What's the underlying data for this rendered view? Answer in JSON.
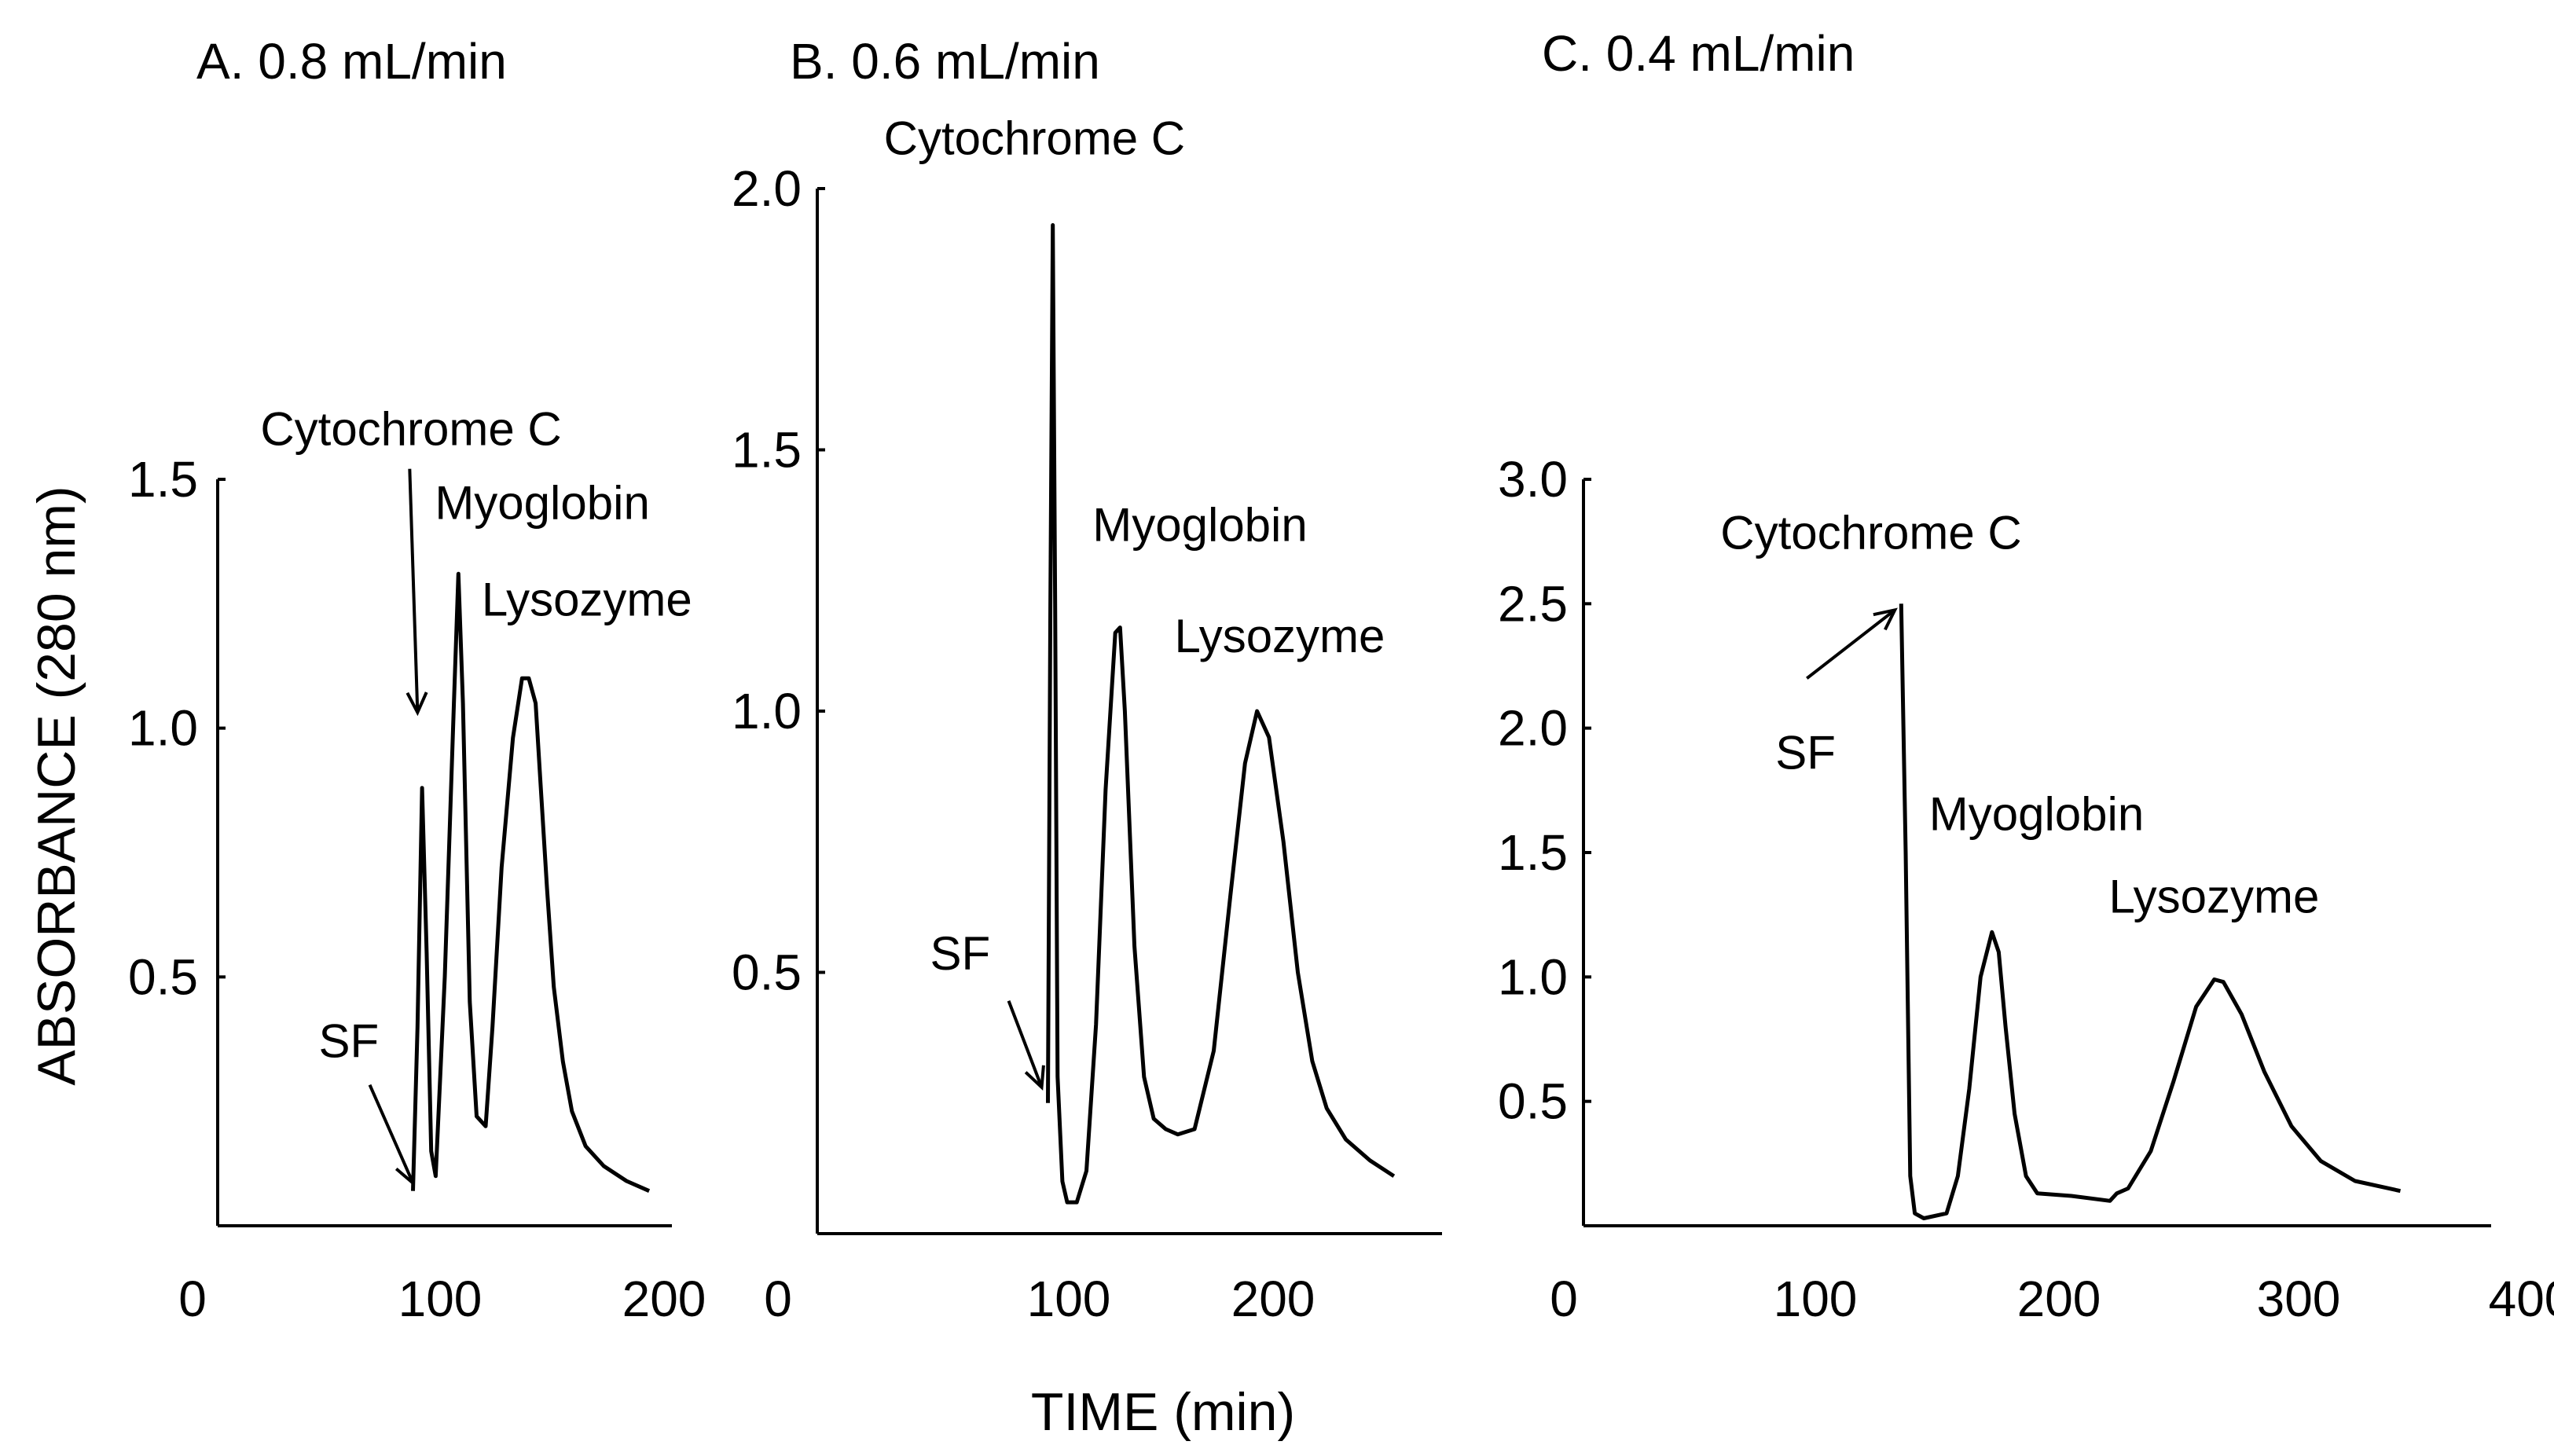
{
  "figure": {
    "ylabel": "ABSORBANCE (280 nm)",
    "xlabel": "TIME (min)"
  },
  "chart_data": [
    {
      "type": "line",
      "title": "A. 0.8 mL/min",
      "xlim": [
        0,
        200
      ],
      "ylim": [
        0,
        1.5
      ],
      "xticks": [
        "0",
        "100",
        "200"
      ],
      "yticks": [
        "0.5",
        "1.0",
        "1.5"
      ],
      "series": [
        {
          "name": "chromatogram",
          "x": [
            86,
            88,
            90,
            92,
            94,
            96,
            100,
            104,
            106,
            108,
            111,
            114,
            118,
            121,
            125,
            130,
            134,
            137,
            140,
            142,
            145,
            148,
            152,
            156,
            162,
            170,
            180,
            190
          ],
          "y": [
            0.07,
            0.4,
            0.88,
            0.55,
            0.15,
            0.1,
            0.5,
            1.05,
            1.31,
            1.05,
            0.45,
            0.22,
            0.2,
            0.4,
            0.72,
            0.98,
            1.1,
            1.1,
            1.05,
            0.9,
            0.68,
            0.48,
            0.33,
            0.23,
            0.16,
            0.12,
            0.09,
            0.07
          ]
        }
      ],
      "annotations": [
        {
          "text": "Cytochrome C",
          "x": 88,
          "y": 1.0,
          "kind": "arrow"
        },
        {
          "text": "Myoglobin",
          "x": 106,
          "y": 1.31,
          "kind": "label"
        },
        {
          "text": "Lysozyme",
          "x": 137,
          "y": 1.1,
          "kind": "label"
        },
        {
          "text": "SF",
          "x": 86,
          "y": 0.07,
          "kind": "arrow"
        }
      ]
    },
    {
      "type": "line",
      "title": "B. 0.6 mL/min",
      "xlim": [
        0,
        260
      ],
      "ylim": [
        0,
        2.0
      ],
      "xticks": [
        "0",
        "100",
        "200"
      ],
      "yticks": [
        "0.5",
        "1.0",
        "1.5",
        "2.0"
      ],
      "series": [
        {
          "name": "chromatogram",
          "x": [
            96,
            97,
            98,
            99,
            100,
            102,
            104,
            108,
            112,
            116,
            120,
            124,
            126,
            128,
            132,
            136,
            140,
            145,
            150,
            157,
            165,
            172,
            178,
            183,
            188,
            194,
            200,
            206,
            212,
            220,
            230,
            240
          ],
          "y": [
            0.25,
            1.2,
            1.93,
            1.2,
            0.3,
            0.1,
            0.06,
            0.06,
            0.12,
            0.4,
            0.85,
            1.15,
            1.16,
            1.0,
            0.55,
            0.3,
            0.22,
            0.2,
            0.19,
            0.2,
            0.35,
            0.65,
            0.9,
            1.0,
            0.95,
            0.75,
            0.5,
            0.33,
            0.24,
            0.18,
            0.14,
            0.11
          ]
        }
      ],
      "annotations": [
        {
          "text": "Cytochrome C",
          "x": 98,
          "y": 1.93,
          "kind": "label"
        },
        {
          "text": "Myoglobin",
          "x": 126,
          "y": 1.16,
          "kind": "label"
        },
        {
          "text": "Lysozyme",
          "x": 183,
          "y": 1.0,
          "kind": "label"
        },
        {
          "text": "SF",
          "x": 96,
          "y": 0.25,
          "kind": "arrow"
        }
      ]
    },
    {
      "type": "line",
      "title": "C. 0.4 mL/min",
      "xlim": [
        0,
        400
      ],
      "ylim": [
        0,
        3.0
      ],
      "xticks": [
        "0",
        "100",
        "200",
        "300",
        "400"
      ],
      "yticks": [
        "0.5",
        "1.0",
        "1.5",
        "2.0",
        "2.5",
        "3.0"
      ],
      "series": [
        {
          "name": "chromatogram",
          "x": [
            140,
            142,
            144,
            146,
            150,
            160,
            165,
            170,
            175,
            180,
            183,
            186,
            190,
            195,
            200,
            215,
            232,
            235,
            240,
            250,
            260,
            270,
            278,
            282,
            290,
            300,
            312,
            325,
            340,
            360
          ],
          "y": [
            2.5,
            1.5,
            0.2,
            0.05,
            0.03,
            0.05,
            0.2,
            0.55,
            1.0,
            1.18,
            1.1,
            0.8,
            0.45,
            0.2,
            0.13,
            0.12,
            0.1,
            0.13,
            0.15,
            0.3,
            0.58,
            0.88,
            0.99,
            0.98,
            0.85,
            0.62,
            0.4,
            0.26,
            0.18,
            0.14
          ]
        }
      ],
      "annotations": [
        {
          "text": "Cytochrome C",
          "x": 140,
          "y": 2.5,
          "kind": "label"
        },
        {
          "text": "Myoglobin",
          "x": 180,
          "y": 1.18,
          "kind": "label"
        },
        {
          "text": "Lysozyme",
          "x": 280,
          "y": 0.99,
          "kind": "label"
        },
        {
          "text": "SF",
          "x": 140,
          "y": 2.5,
          "kind": "arrow"
        }
      ]
    }
  ]
}
